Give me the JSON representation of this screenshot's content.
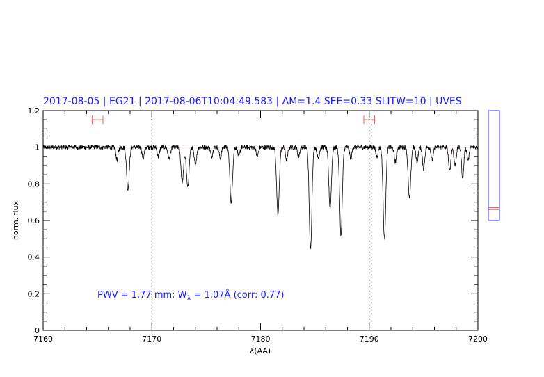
{
  "title": "2017-08-05 | EG21 | 2017-08-06T10:04:49.583 | AM=1.4  SEE=0.33  SLITW=10 | UVES",
  "annotation": {
    "pwv_text": "PWV = 1.77 mm; W",
    "lambda_sub": "λ",
    "rest_text": " = 1.07Å (corr: 0.77)"
  },
  "colors": {
    "title": "#1a1aff",
    "spectrum": "#000000",
    "continuum": "#e06060",
    "window_marker": "#e06060",
    "side_box": "#3030ff"
  },
  "chart_data": {
    "type": "line",
    "xlabel": "λ(AA)",
    "ylabel": "norm. flux",
    "xlim": [
      7160,
      7200
    ],
    "ylim": [
      0,
      1.2
    ],
    "x_ticks": [
      7160,
      7170,
      7180,
      7190,
      7200
    ],
    "x_tick_labels": [
      "7160",
      "7170",
      "7180",
      "7190",
      "7200"
    ],
    "y_ticks": [
      0,
      0.2,
      0.4,
      0.6,
      0.8,
      1,
      1.2
    ],
    "y_tick_labels": [
      "0",
      "0.2",
      "0.4",
      "0.6",
      "0.8",
      "1",
      "1.2"
    ],
    "continuum_level": 1.0,
    "dotted_verticals": [
      7170,
      7190
    ],
    "continuum_windows": [
      {
        "x0": 7164.5,
        "x1": 7165.5,
        "y": 1.15
      },
      {
        "x0": 7189.5,
        "x1": 7190.5,
        "y": 1.15
      }
    ],
    "absorption_lines": [
      {
        "x": 7167.8,
        "depth": 0.23,
        "width": 0.12
      },
      {
        "x": 7166.8,
        "depth": 0.07,
        "width": 0.1
      },
      {
        "x": 7169.2,
        "depth": 0.06,
        "width": 0.1
      },
      {
        "x": 7170.6,
        "depth": 0.05,
        "width": 0.1
      },
      {
        "x": 7171.6,
        "depth": 0.06,
        "width": 0.12
      },
      {
        "x": 7172.8,
        "depth": 0.19,
        "width": 0.12
      },
      {
        "x": 7173.3,
        "depth": 0.22,
        "width": 0.12
      },
      {
        "x": 7174.0,
        "depth": 0.09,
        "width": 0.12
      },
      {
        "x": 7175.5,
        "depth": 0.05,
        "width": 0.1
      },
      {
        "x": 7176.3,
        "depth": 0.06,
        "width": 0.1
      },
      {
        "x": 7177.3,
        "depth": 0.3,
        "width": 0.12
      },
      {
        "x": 7178.0,
        "depth": 0.05,
        "width": 0.1
      },
      {
        "x": 7179.7,
        "depth": 0.05,
        "width": 0.1
      },
      {
        "x": 7181.6,
        "depth": 0.37,
        "width": 0.12
      },
      {
        "x": 7182.4,
        "depth": 0.07,
        "width": 0.1
      },
      {
        "x": 7183.5,
        "depth": 0.05,
        "width": 0.1
      },
      {
        "x": 7184.6,
        "depth": 0.56,
        "width": 0.12
      },
      {
        "x": 7185.3,
        "depth": 0.06,
        "width": 0.1
      },
      {
        "x": 7186.4,
        "depth": 0.33,
        "width": 0.12
      },
      {
        "x": 7187.4,
        "depth": 0.48,
        "width": 0.12
      },
      {
        "x": 7188.3,
        "depth": 0.06,
        "width": 0.1
      },
      {
        "x": 7190.7,
        "depth": 0.05,
        "width": 0.1
      },
      {
        "x": 7191.4,
        "depth": 0.5,
        "width": 0.12
      },
      {
        "x": 7192.4,
        "depth": 0.08,
        "width": 0.1
      },
      {
        "x": 7193.7,
        "depth": 0.28,
        "width": 0.12
      },
      {
        "x": 7194.4,
        "depth": 0.08,
        "width": 0.1
      },
      {
        "x": 7195.0,
        "depth": 0.12,
        "width": 0.1
      },
      {
        "x": 7195.8,
        "depth": 0.07,
        "width": 0.1
      },
      {
        "x": 7197.4,
        "depth": 0.13,
        "width": 0.1
      },
      {
        "x": 7197.9,
        "depth": 0.1,
        "width": 0.1
      },
      {
        "x": 7198.6,
        "depth": 0.17,
        "width": 0.1
      },
      {
        "x": 7199.1,
        "depth": 0.07,
        "width": 0.1
      }
    ],
    "side_panel": {
      "ylim": [
        0,
        1.2
      ],
      "box_range": [
        0.6,
        1.2
      ],
      "marks": [
        0.66,
        0.67
      ]
    }
  }
}
